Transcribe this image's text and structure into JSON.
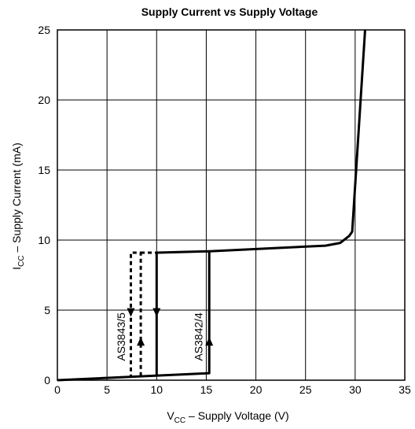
{
  "chart_data": {
    "type": "line",
    "title": "Supply Current vs Supply Voltage",
    "xlabel_main": "V",
    "xlabel_sub": "CC",
    "xlabel_rest": " – Supply Voltage (V)",
    "ylabel_main": "I",
    "ylabel_sub": "CC",
    "ylabel_rest": " – Supply Current (mA)",
    "xlim": [
      0,
      35
    ],
    "ylim": [
      0,
      25
    ],
    "xticks": [
      0,
      5,
      10,
      15,
      20,
      25,
      30,
      35
    ],
    "yticks": [
      0,
      5,
      10,
      15,
      20,
      25
    ],
    "grid": true,
    "colors": {
      "line": "#000000",
      "grid": "#000000"
    },
    "series": [
      {
        "style": "solid",
        "label": "",
        "points": [
          [
            0,
            0
          ],
          [
            15.3,
            0.5
          ],
          [
            15.3,
            9.2
          ],
          [
            27,
            9.6
          ],
          [
            28.5,
            9.8
          ],
          [
            29.4,
            10.3
          ],
          [
            29.7,
            10.6
          ],
          [
            31.0,
            25
          ]
        ]
      },
      {
        "style": "solid",
        "label": "",
        "points": [
          [
            10,
            0.3
          ],
          [
            10,
            9.1
          ],
          [
            15.3,
            9.2
          ]
        ]
      },
      {
        "style": "dashed",
        "label": "AS3843/5",
        "points": [
          [
            8.4,
            0.3
          ],
          [
            8.4,
            9.1
          ],
          [
            7.4,
            9.1
          ],
          [
            7.4,
            0.3
          ]
        ]
      },
      {
        "style": "dashed",
        "label": "",
        "points": [
          [
            8.4,
            9.1
          ],
          [
            10,
            9.1
          ]
        ]
      }
    ],
    "annotations": [
      {
        "text": "AS3843/5",
        "x": 6.8,
        "y": 3.1,
        "rotation": -90
      },
      {
        "text": "AS3842/4",
        "x": 14.6,
        "y": 3.1,
        "rotation": -90
      }
    ],
    "arrows": [
      {
        "x": 7.4,
        "y": 4.8,
        "dir": "down"
      },
      {
        "x": 8.4,
        "y": 2.8,
        "dir": "up"
      },
      {
        "x": 10,
        "y": 4.8,
        "dir": "down"
      },
      {
        "x": 15.3,
        "y": 2.8,
        "dir": "up"
      }
    ]
  }
}
